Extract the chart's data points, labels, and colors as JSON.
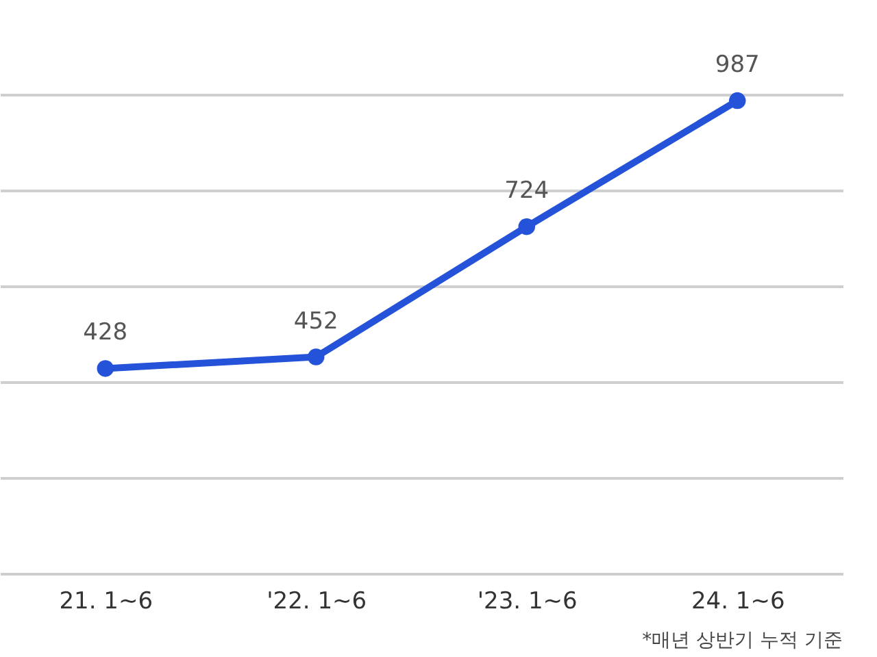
{
  "chart_data": {
    "type": "line",
    "categories": [
      "21. 1~6",
      "'22. 1~6",
      "'23. 1~6",
      "24. 1~6"
    ],
    "series": [
      {
        "color": "#2452d8",
        "values": [
          428,
          452,
          724,
          987
        ]
      }
    ],
    "ylim": [
      0,
      1000
    ],
    "yticks": [
      {
        "value": 0,
        "label": null
      },
      {
        "value": 200,
        "label": null
      },
      {
        "value": 400,
        "label": null
      },
      {
        "value": 600,
        "label": null
      },
      {
        "value": 800,
        "label": null
      },
      {
        "value": 1000,
        "label": null
      }
    ],
    "tick_labels": "x",
    "grid": "y",
    "marker": "circle",
    "line_style": "solid",
    "data_labels": true,
    "annotations": [
      "*매년 상반기 누적 기준"
    ]
  }
}
